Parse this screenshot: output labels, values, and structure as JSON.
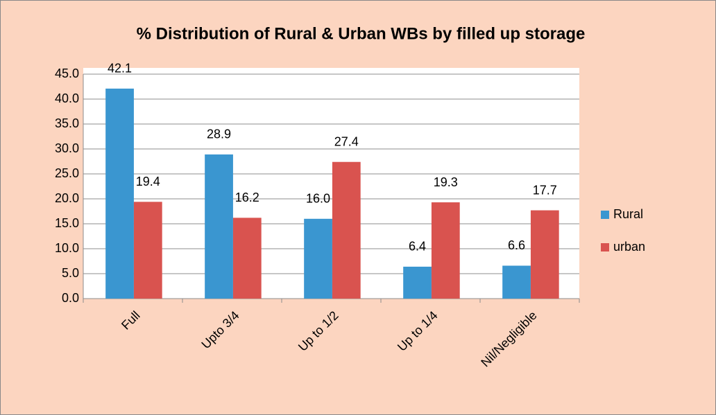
{
  "chart_data": {
    "type": "bar",
    "title": "% Distribution of Rural & Urban WBs by filled up storage",
    "categories": [
      "Full",
      "Upto 3/4",
      "Up to 1/2",
      "Up to 1/4",
      "Nil/Negligible"
    ],
    "series": [
      {
        "name": "Rural",
        "color": "#3a96d0",
        "values": [
          42.1,
          28.9,
          16.0,
          6.4,
          6.6
        ],
        "value_labels": [
          "42.1",
          "28.9",
          "16.0",
          "6.4",
          "6.6"
        ]
      },
      {
        "name": "urban",
        "color": "#d9534f",
        "values": [
          19.4,
          16.2,
          27.4,
          19.3,
          17.7
        ],
        "value_labels": [
          "19.4",
          "16.2",
          "27.4",
          "19.3",
          "17.7"
        ]
      }
    ],
    "ylim": [
      0,
      45
    ],
    "yticks": [
      {
        "value": 0,
        "label": "0.0"
      },
      {
        "value": 5,
        "label": "5.0"
      },
      {
        "value": 10,
        "label": "10.0"
      },
      {
        "value": 15,
        "label": "15.0"
      },
      {
        "value": 20,
        "label": "20.0"
      },
      {
        "value": 25,
        "label": "25.0"
      },
      {
        "value": 30,
        "label": "30.0"
      },
      {
        "value": 35,
        "label": "35.0"
      },
      {
        "value": 40,
        "label": "40.0"
      },
      {
        "value": 45,
        "label": "45.0"
      }
    ],
    "grid": true,
    "legend": "right"
  }
}
